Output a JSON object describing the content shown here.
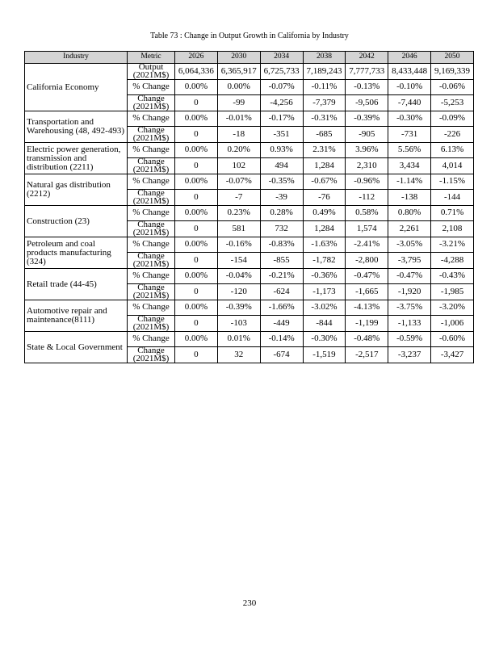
{
  "title": "Table 73 : Change in Output Growth in California by Industry",
  "table": {
    "header": [
      "Industry",
      "Metric",
      "2026",
      "2030",
      "2034",
      "2038",
      "2042",
      "2046",
      "2050"
    ],
    "groups": [
      {
        "industry": "California Economy",
        "rows": [
          {
            "metric": "Output (2021M$)",
            "values": [
              "6,064,336",
              "6,365,917",
              "6,725,733",
              "7,189,243",
              "7,777,733",
              "8,433,448",
              "9,169,339"
            ]
          },
          {
            "metric": "% Change",
            "values": [
              "0.00%",
              "0.00%",
              "-0.07%",
              "-0.11%",
              "-0.13%",
              "-0.10%",
              "-0.06%"
            ]
          },
          {
            "metric": "Change (2021M$)",
            "values": [
              "0",
              "-99",
              "-4,256",
              "-7,379",
              "-9,506",
              "-7,440",
              "-5,253"
            ]
          }
        ]
      },
      {
        "industry": "Transportation and Warehousing (48, 492-493)",
        "rows": [
          {
            "metric": "% Change",
            "values": [
              "0.00%",
              "-0.01%",
              "-0.17%",
              "-0.31%",
              "-0.39%",
              "-0.30%",
              "-0.09%"
            ]
          },
          {
            "metric": "Change (2021M$)",
            "values": [
              "0",
              "-18",
              "-351",
              "-685",
              "-905",
              "-731",
              "-226"
            ]
          }
        ]
      },
      {
        "industry": "Electric power generation, transmission and distribution (2211)",
        "rows": [
          {
            "metric": "% Change",
            "values": [
              "0.00%",
              "0.20%",
              "0.93%",
              "2.31%",
              "3.96%",
              "5.56%",
              "6.13%"
            ]
          },
          {
            "metric": "Change (2021M$)",
            "values": [
              "0",
              "102",
              "494",
              "1,284",
              "2,310",
              "3,434",
              "4,014"
            ]
          }
        ]
      },
      {
        "industry": "Natural gas distribution (2212)",
        "rows": [
          {
            "metric": "% Change",
            "values": [
              "0.00%",
              "-0.07%",
              "-0.35%",
              "-0.67%",
              "-0.96%",
              "-1.14%",
              "-1.15%"
            ]
          },
          {
            "metric": "Change (2021M$)",
            "values": [
              "0",
              "-7",
              "-39",
              "-76",
              "-112",
              "-138",
              "-144"
            ]
          }
        ]
      },
      {
        "industry": "Construction (23)",
        "rows": [
          {
            "metric": "% Change",
            "values": [
              "0.00%",
              "0.23%",
              "0.28%",
              "0.49%",
              "0.58%",
              "0.80%",
              "0.71%"
            ]
          },
          {
            "metric": "Change (2021M$)",
            "values": [
              "0",
              "581",
              "732",
              "1,284",
              "1,574",
              "2,261",
              "2,108"
            ]
          }
        ]
      },
      {
        "industry": "Petroleum and coal products manufacturing (324)",
        "rows": [
          {
            "metric": "% Change",
            "values": [
              "0.00%",
              "-0.16%",
              "-0.83%",
              "-1.63%",
              "-2.41%",
              "-3.05%",
              "-3.21%"
            ]
          },
          {
            "metric": "Change (2021M$)",
            "values": [
              "0",
              "-154",
              "-855",
              "-1,782",
              "-2,800",
              "-3,795",
              "-4,288"
            ]
          }
        ]
      },
      {
        "industry": "Retail trade (44-45)",
        "rows": [
          {
            "metric": "% Change",
            "values": [
              "0.00%",
              "-0.04%",
              "-0.21%",
              "-0.36%",
              "-0.47%",
              "-0.47%",
              "-0.43%"
            ]
          },
          {
            "metric": "Change (2021M$)",
            "values": [
              "0",
              "-120",
              "-624",
              "-1,173",
              "-1,665",
              "-1,920",
              "-1,985"
            ]
          }
        ]
      },
      {
        "industry": "Automotive repair and maintenance(8111)",
        "rows": [
          {
            "metric": "% Change",
            "values": [
              "0.00%",
              "-0.39%",
              "-1.66%",
              "-3.02%",
              "-4.13%",
              "-3.75%",
              "-3.20%"
            ]
          },
          {
            "metric": "Change (2021M$)",
            "values": [
              "0",
              "-103",
              "-449",
              "-844",
              "-1,199",
              "-1,133",
              "-1,006"
            ]
          }
        ]
      },
      {
        "industry": "State & Local Government",
        "rows": [
          {
            "metric": "% Change",
            "values": [
              "0.00%",
              "0.01%",
              "-0.14%",
              "-0.30%",
              "-0.48%",
              "-0.59%",
              "-0.60%"
            ]
          },
          {
            "metric": "Change (2021M$)",
            "values": [
              "0",
              "32",
              "-674",
              "-1,519",
              "-2,517",
              "-3,237",
              "-3,427"
            ]
          }
        ]
      }
    ]
  },
  "page_number": "230"
}
